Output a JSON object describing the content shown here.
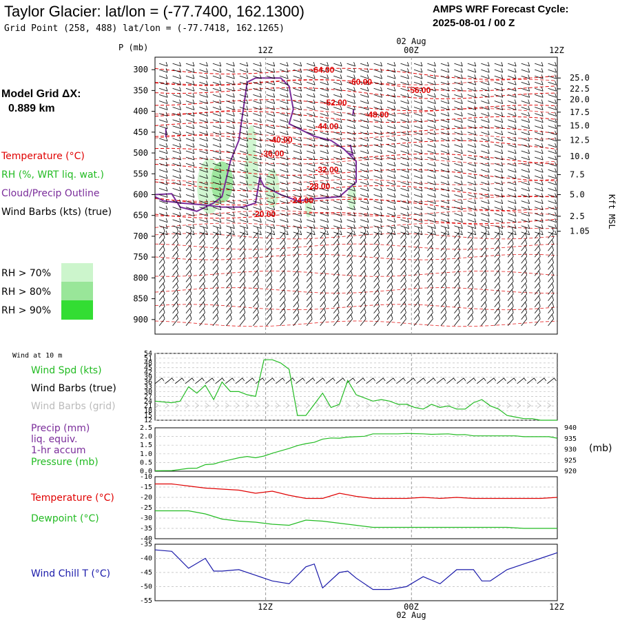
{
  "header": {
    "title": "Taylor Glacier:  lat/lon = (-77.7400, 162.1300)",
    "subtitle": "Grid Point (258, 488) lat/lon = (-77.7418, 162.1265)",
    "cycle_line1": "AMPS WRF Forecast Cycle:",
    "cycle_line2": "2025-08-01 / 00  Z"
  },
  "time_axis": {
    "top_labels": [
      "12Z",
      "00Z",
      "12Z"
    ],
    "top_date": "02 Aug",
    "bottom_labels": [
      "12Z",
      "00Z",
      "12Z"
    ],
    "bottom_date": "02 Aug"
  },
  "left_panel": {
    "grid_label_1": "Model Grid ΔX:",
    "grid_label_2": "0.889 km",
    "legend_temperature": "Temperature (°C)",
    "legend_rh": "RH (%, WRT liq. wat.)",
    "legend_cloud": "Cloud/Precip Outline",
    "legend_wind": "Wind Barbs (kts) (true)",
    "rh_70": "RH > 70%",
    "rh_80": "RH > 80%",
    "rh_90": "RH > 90%",
    "pressure_axis_title": "P (mb)",
    "kft_axis_title": "Kft MSL"
  },
  "colors": {
    "temperature": "#e00000",
    "rh70": "#ccf5cc",
    "rh80": "#99e699",
    "rh90": "#33dd33",
    "cloud": "#7a2c9a",
    "wind_speed": "#22bb22",
    "precip_label": "#7a2c9a",
    "pressure": "#22bb22",
    "dewpoint": "#22bb22",
    "windchill": "#1a1aaa",
    "wind_grid": "#bbbbbb"
  },
  "chart_data": [
    {
      "type": "heatmap",
      "name": "cross-section",
      "y_axis": "Pressure (mb)",
      "y_ticks": [
        300,
        350,
        400,
        450,
        500,
        550,
        600,
        650,
        700,
        750,
        800,
        850,
        900
      ],
      "y_range": [
        935,
        270
      ],
      "right_ticks": [
        "25.0",
        "22.5",
        "20.0",
        "17.5",
        "15.0",
        "12.5",
        "10.0",
        "7.5",
        "5.0",
        "2.5",
        "1.05"
      ],
      "right_ticks_p": [
        320,
        346,
        372,
        402,
        435,
        469,
        508,
        552,
        600,
        652,
        688
      ],
      "x_range_hours": [
        0,
        48
      ],
      "temperature_labels": [
        {
          "text": "-64.00",
          "hour": 20,
          "p": 307
        },
        {
          "text": "-60.00",
          "hour": 24.5,
          "p": 336
        },
        {
          "text": "-56.00",
          "hour": 31.5,
          "p": 356
        },
        {
          "text": "-52.00",
          "hour": 21.5,
          "p": 386
        },
        {
          "text": "-48.00",
          "hour": 26.5,
          "p": 415
        },
        {
          "text": "-44.00",
          "hour": 20.5,
          "p": 443
        },
        {
          "text": "-40.00",
          "hour": 15,
          "p": 475
        },
        {
          "text": "-36.00",
          "hour": 14,
          "p": 508
        },
        {
          "text": "-32.00",
          "hour": 20.5,
          "p": 547
        },
        {
          "text": "-28.00",
          "hour": 19.5,
          "p": 587
        },
        {
          "text": "-24.00",
          "hour": 17.5,
          "p": 621
        },
        {
          "text": "-20.00",
          "hour": 13,
          "p": 654
        }
      ]
    },
    {
      "type": "line",
      "name": "surface-wind",
      "label_wind_at": "Wind at 10 m",
      "series_names": [
        "Wind Spd (kts)",
        "Wind Barbs (true)",
        "Wind Barbs (grid)"
      ],
      "y_ticks": [
        12,
        15,
        18,
        21,
        24,
        27,
        30,
        33,
        36,
        39,
        42,
        45,
        48,
        51,
        54
      ],
      "y_range": [
        12,
        54
      ],
      "x_hours": [
        0,
        2,
        3,
        4,
        5,
        6,
        7,
        8,
        9,
        10,
        11,
        12,
        13,
        14,
        15,
        16,
        17,
        18,
        19,
        20,
        21,
        22,
        23,
        24,
        25,
        26,
        27,
        28,
        29,
        30,
        31,
        32,
        33,
        34,
        35,
        36,
        37,
        38,
        39,
        40,
        41,
        42,
        43,
        44,
        45,
        46,
        47,
        48
      ],
      "values": [
        24,
        23,
        24,
        33,
        29,
        34,
        25,
        36,
        30,
        30,
        28,
        27,
        50,
        50,
        48,
        44,
        15,
        15,
        22,
        29,
        20,
        22,
        37,
        28,
        26,
        24,
        25,
        24,
        22,
        22,
        20,
        19,
        22,
        20,
        21,
        19,
        19,
        23,
        25,
        21,
        19,
        15,
        14,
        13,
        13,
        12,
        12,
        12
      ]
    },
    {
      "type": "line",
      "name": "precip-pressure",
      "series_names": [
        "Precip (mm)",
        "liq. equiv.",
        "1-hr accum",
        "Pressure (mb)"
      ],
      "left_ticks": [
        "0.0",
        "0.5",
        "1.0",
        "1.5",
        "2.0",
        "2.5"
      ],
      "right_ticks": [
        920,
        925,
        930,
        935,
        940
      ],
      "pressure_range": [
        920,
        940
      ],
      "pressure_unit_label": "(mb)",
      "x_hours": [
        0,
        2,
        4,
        5,
        6,
        7,
        8,
        9,
        10,
        11,
        12,
        13,
        14,
        15,
        16,
        17,
        18,
        19,
        20,
        21,
        22,
        23,
        24,
        25,
        26,
        27,
        28,
        29,
        30,
        31,
        32,
        33,
        34,
        35,
        36,
        37,
        38,
        39,
        40,
        41,
        42,
        43,
        44,
        45,
        46,
        47,
        48
      ],
      "pressure": [
        920.2,
        920.3,
        921.3,
        921.4,
        923.0,
        923.3,
        924.4,
        925.3,
        926.2,
        926.8,
        926.2,
        927.0,
        928.3,
        929.4,
        930.5,
        931.8,
        932.7,
        933.3,
        934.8,
        935.3,
        935.2,
        935.7,
        935.9,
        936.1,
        937.2,
        937.2,
        937.2,
        937.2,
        937.4,
        937.3,
        937.2,
        937.0,
        937.1,
        937.2,
        936.8,
        936.9,
        936.3,
        936.3,
        936.3,
        936.3,
        936.3,
        936.3,
        935.9,
        935.9,
        935.9,
        935.9,
        935.2
      ],
      "precip": []
    },
    {
      "type": "line",
      "name": "temperature-dewpoint",
      "series_names": [
        "Temperature (°C)",
        "Dewpoint (°C)"
      ],
      "y_ticks": [
        -40,
        -35,
        -30,
        -25,
        -20,
        -15,
        -10
      ],
      "y_range": [
        -40,
        -10
      ],
      "x_hours": [
        0,
        2,
        4,
        6,
        8,
        10,
        12,
        14,
        16,
        18,
        20,
        22,
        24,
        26,
        28,
        30,
        32,
        34,
        36,
        38,
        40,
        42,
        44,
        46,
        48
      ],
      "temperature": [
        -13.5,
        -13.5,
        -14.5,
        -15.5,
        -16.0,
        -16.5,
        -18.0,
        -17.0,
        -19.0,
        -20.5,
        -20.5,
        -18.0,
        -19.5,
        -20.5,
        -20.5,
        -20.5,
        -20.0,
        -20.5,
        -20.0,
        -20.5,
        -20.5,
        -20.5,
        -20.5,
        -20.5,
        -20.0
      ],
      "dewpoint": [
        -26.5,
        -26.5,
        -26.5,
        -28.0,
        -30.5,
        -31.5,
        -32.0,
        -33.0,
        -33.5,
        -31.0,
        -31.5,
        -32.5,
        -33.5,
        -34.5,
        -34.5,
        -34.5,
        -34.5,
        -34.5,
        -34.5,
        -34.5,
        -34.5,
        -34.5,
        -35.0,
        -35.0,
        -35.0
      ]
    },
    {
      "type": "line",
      "name": "wind-chill",
      "series_names": [
        "Wind Chill T (°C)"
      ],
      "y_ticks": [
        -55,
        -50,
        -45,
        -40,
        -35
      ],
      "y_range": [
        -55,
        -35
      ],
      "x_hours": [
        0,
        2,
        4,
        6,
        7,
        8,
        10,
        12,
        14,
        16,
        18,
        19,
        20,
        22,
        23,
        24,
        26,
        28,
        30,
        32,
        34,
        36,
        38,
        39,
        40,
        42,
        44,
        46,
        48
      ],
      "values": [
        -37,
        -37.5,
        -43.5,
        -40,
        -44.5,
        -44.5,
        -44,
        -46,
        -48,
        -49,
        -43,
        -42,
        -50.5,
        -45,
        -44.5,
        -47,
        -51,
        -51,
        -50,
        -46.5,
        -49,
        -44,
        -44,
        -48,
        -48,
        -44,
        -42,
        -40,
        -38
      ]
    }
  ]
}
